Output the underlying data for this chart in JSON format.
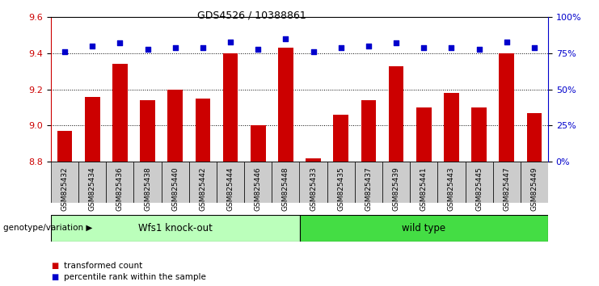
{
  "title": "GDS4526 / 10388861",
  "samples": [
    "GSM825432",
    "GSM825434",
    "GSM825436",
    "GSM825438",
    "GSM825440",
    "GSM825442",
    "GSM825444",
    "GSM825446",
    "GSM825448",
    "GSM825433",
    "GSM825435",
    "GSM825437",
    "GSM825439",
    "GSM825441",
    "GSM825443",
    "GSM825445",
    "GSM825447",
    "GSM825449"
  ],
  "bar_values": [
    8.97,
    9.16,
    9.34,
    9.14,
    9.2,
    9.15,
    9.4,
    9.0,
    9.43,
    8.82,
    9.06,
    9.14,
    9.33,
    9.1,
    9.18,
    9.1,
    9.4,
    9.07
  ],
  "percentile_values": [
    76,
    80,
    82,
    78,
    79,
    79,
    83,
    78,
    85,
    76,
    79,
    80,
    82,
    79,
    79,
    78,
    83,
    79
  ],
  "bar_color": "#cc0000",
  "dot_color": "#0000cc",
  "ylim_left": [
    8.8,
    9.6
  ],
  "ylim_right": [
    0,
    100
  ],
  "yticks_left": [
    8.8,
    9.0,
    9.2,
    9.4,
    9.6
  ],
  "yticks_right": [
    0,
    25,
    50,
    75,
    100
  ],
  "ytick_labels_right": [
    "0%",
    "25%",
    "50%",
    "75%",
    "100%"
  ],
  "gridlines": [
    9.0,
    9.2,
    9.4
  ],
  "group1_label": "Wfs1 knock-out",
  "group2_label": "wild type",
  "group1_color": "#bbffbb",
  "group2_color": "#44dd44",
  "group1_count": 9,
  "group2_count": 9,
  "legend_bar_label": "transformed count",
  "legend_dot_label": "percentile rank within the sample",
  "genotype_label": "genotype/variation",
  "tick_bg_color": "#cccccc"
}
